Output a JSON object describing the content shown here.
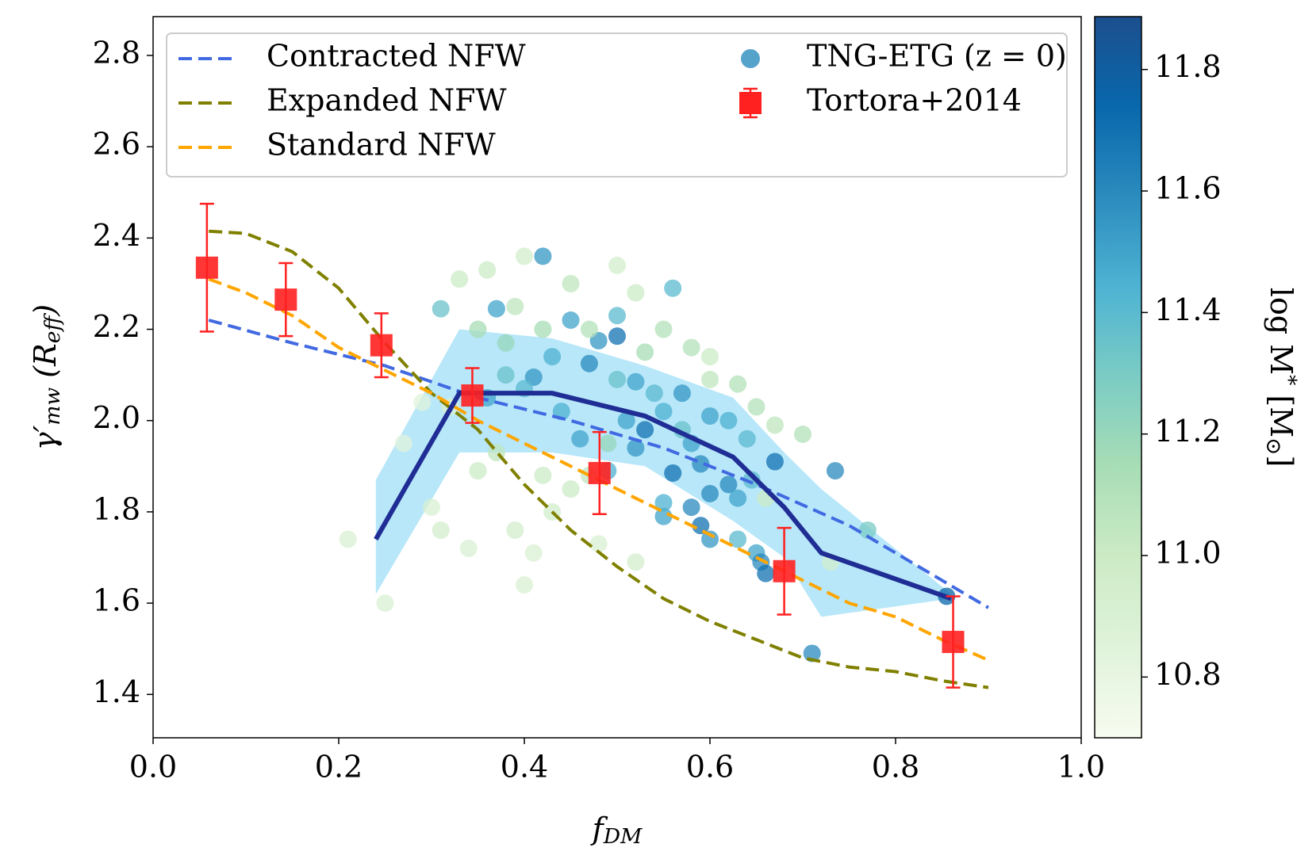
{
  "chart_data": {
    "type": "scatter",
    "xlabel": [
      {
        "text": "f"
      },
      {
        "text": "DM",
        "script": "sub"
      }
    ],
    "ylabel": [
      {
        "text": "γ′"
      },
      {
        "text": "mw",
        "script": "sub"
      },
      {
        "text": " (R"
      },
      {
        "text": "eff",
        "script": "sub"
      },
      {
        "text": ")"
      }
    ],
    "xlim": [
      0,
      1
    ],
    "xticks": [
      {
        "value": 0,
        "label": "0.0"
      },
      0.2,
      0.4,
      0.6,
      0.8,
      {
        "value": 1,
        "label": "1.0"
      }
    ],
    "ylim": [
      1.305,
      2.885
    ],
    "yticks": [
      1.4,
      1.6,
      1.8,
      {
        "value": 2,
        "label": "2.0"
      },
      2.2,
      2.4,
      2.6,
      2.8
    ],
    "lines": [
      {
        "name": "Contracted NFW",
        "color": "#4169e1",
        "dash": true,
        "x": [
          0.06,
          0.15,
          0.25,
          0.35,
          0.45,
          0.55,
          0.65,
          0.75,
          0.85,
          0.9
        ],
        "values": [
          2.22,
          2.17,
          2.12,
          2.05,
          2.0,
          1.94,
          1.86,
          1.77,
          1.65,
          1.59
        ]
      },
      {
        "name": "Expanded NFW",
        "color": "#808000",
        "dash": true,
        "x": [
          0.06,
          0.1,
          0.15,
          0.2,
          0.25,
          0.3,
          0.35,
          0.4,
          0.45,
          0.5,
          0.55,
          0.6,
          0.65,
          0.7,
          0.75,
          0.8,
          0.85,
          0.9
        ],
        "values": [
          2.415,
          2.41,
          2.37,
          2.29,
          2.17,
          2.06,
          1.98,
          1.86,
          1.76,
          1.68,
          1.61,
          1.56,
          1.52,
          1.48,
          1.46,
          1.45,
          1.43,
          1.415
        ]
      },
      {
        "name": "Standard NFW",
        "color": "#ffa500",
        "dash": true,
        "x": [
          0.06,
          0.1,
          0.15,
          0.2,
          0.25,
          0.3,
          0.35,
          0.4,
          0.45,
          0.5,
          0.55,
          0.6,
          0.65,
          0.7,
          0.75,
          0.8,
          0.85,
          0.9
        ],
        "values": [
          2.31,
          2.28,
          2.23,
          2.16,
          2.11,
          2.06,
          2.0,
          1.95,
          1.9,
          1.85,
          1.8,
          1.75,
          1.7,
          1.65,
          1.6,
          1.57,
          1.52,
          1.475
        ]
      }
    ],
    "median": {
      "color": "#1f2d94",
      "band_color": "#87d7f5",
      "x": [
        0.24,
        0.33,
        0.43,
        0.53,
        0.625,
        0.68,
        0.72,
        0.86
      ],
      "values": [
        1.74,
        2.06,
        2.06,
        2.01,
        1.92,
        1.81,
        1.71,
        1.61
      ],
      "upper": [
        1.87,
        2.2,
        2.18,
        2.12,
        2.05,
        1.93,
        1.85,
        1.62
      ],
      "lower": [
        1.62,
        1.93,
        1.93,
        1.9,
        1.78,
        1.7,
        1.57,
        1.61
      ]
    },
    "scatter": {
      "name": "TNG-ETG (z = 0)",
      "legend_color": "#2b8cbe",
      "x": [
        0.42,
        0.37,
        0.31,
        0.5,
        0.45,
        0.56,
        0.47,
        0.41,
        0.48,
        0.5,
        0.52,
        0.57,
        0.6,
        0.53,
        0.58,
        0.59,
        0.56,
        0.6,
        0.62,
        0.63,
        0.58,
        0.59,
        0.6,
        0.55,
        0.55,
        0.63,
        0.65,
        0.655,
        0.66,
        0.67,
        0.735,
        0.71,
        0.855,
        0.77,
        0.645,
        0.64,
        0.62,
        0.55,
        0.52,
        0.49,
        0.46,
        0.44,
        0.4,
        0.36,
        0.38,
        0.43,
        0.5,
        0.54,
        0.57,
        0.51,
        0.4,
        0.45,
        0.5,
        0.36,
        0.33,
        0.39,
        0.52,
        0.58,
        0.6,
        0.6,
        0.65,
        0.67,
        0.66,
        0.21,
        0.25,
        0.3,
        0.31,
        0.34,
        0.39,
        0.4,
        0.41,
        0.43,
        0.45,
        0.48,
        0.52,
        0.32,
        0.29,
        0.35,
        0.37,
        0.42,
        0.47,
        0.73,
        0.27,
        0.55,
        0.53,
        0.47,
        0.42,
        0.38,
        0.35,
        0.63,
        0.7,
        0.49
      ],
      "values": [
        2.36,
        2.245,
        2.245,
        2.185,
        2.22,
        2.29,
        2.125,
        2.095,
        2.175,
        2.23,
        2.085,
        2.06,
        2.01,
        1.98,
        1.95,
        1.905,
        1.885,
        1.84,
        1.86,
        1.83,
        1.81,
        1.77,
        1.74,
        1.79,
        1.82,
        1.74,
        1.71,
        1.69,
        1.665,
        1.91,
        1.89,
        1.49,
        1.615,
        1.76,
        1.87,
        1.96,
        2.0,
        2.02,
        1.94,
        1.89,
        1.96,
        2.02,
        2.07,
        2.05,
        2.1,
        2.14,
        2.09,
        2.06,
        1.98,
        2.0,
        2.36,
        2.3,
        2.34,
        2.33,
        2.31,
        2.25,
        2.28,
        2.16,
        2.14,
        2.09,
        2.03,
        1.99,
        1.83,
        1.74,
        1.6,
        1.81,
        1.76,
        1.72,
        1.76,
        1.64,
        1.71,
        1.8,
        1.85,
        1.73,
        1.69,
        2.03,
        2.04,
        1.89,
        1.93,
        1.88,
        1.88,
        1.69,
        1.95,
        2.2,
        2.15,
        2.2,
        2.2,
        2.17,
        2.2,
        2.08,
        1.97,
        1.95
      ],
      "mass": [
        11.55,
        11.5,
        11.35,
        11.7,
        11.5,
        11.4,
        11.6,
        11.55,
        11.55,
        11.4,
        11.5,
        11.55,
        11.5,
        11.7,
        11.5,
        11.6,
        11.7,
        11.6,
        11.6,
        11.5,
        11.6,
        11.7,
        11.55,
        11.5,
        11.45,
        11.4,
        11.5,
        11.6,
        11.7,
        11.7,
        11.6,
        11.6,
        11.75,
        11.3,
        11.4,
        11.4,
        11.45,
        11.45,
        11.55,
        11.45,
        11.5,
        11.45,
        11.4,
        11.5,
        11.35,
        11.45,
        11.35,
        11.4,
        11.35,
        11.5,
        10.95,
        11.05,
        10.95,
        11.0,
        11.0,
        11.05,
        11.0,
        11.1,
        11.0,
        11.05,
        11.1,
        11.05,
        11.0,
        10.9,
        10.9,
        10.9,
        10.95,
        10.9,
        10.95,
        10.9,
        10.9,
        10.95,
        11.0,
        10.9,
        10.95,
        10.9,
        10.85,
        11.0,
        11.05,
        11.0,
        11.05,
        10.95,
        10.85,
        11.1,
        11.15,
        11.1,
        11.15,
        11.2,
        11.15,
        11.1,
        11.1,
        11.2
      ]
    },
    "errorbars": {
      "name": "Tortora+2014",
      "color": "#ff2020",
      "x": [
        0.058,
        0.143,
        0.246,
        0.344,
        0.481,
        0.68,
        0.862
      ],
      "values": [
        2.335,
        2.265,
        2.165,
        2.055,
        1.885,
        1.67,
        1.515
      ],
      "errors": [
        0.14,
        0.08,
        0.07,
        0.06,
        0.09,
        0.095,
        0.1
      ]
    },
    "colorbar": {
      "label": [
        {
          "text": "log M"
        },
        {
          "text": "*",
          "script": "sup"
        },
        {
          "text": " [M"
        },
        {
          "text": "⊙",
          "script": "sub"
        },
        {
          "text": "]"
        }
      ],
      "lim": [
        10.7,
        11.887
      ],
      "ticks": [
        10.8,
        {
          "value": 11,
          "label": "11.0"
        },
        11.2,
        11.4,
        11.6,
        11.8
      ],
      "colormap": [
        "#f7fcf0",
        "#e0f3db",
        "#ccebc5",
        "#a8ddb5",
        "#7bccc4",
        "#4eb3d3",
        "#2b8cbe",
        "#0868ac",
        "#1c4f8e"
      ]
    },
    "legend": "upper"
  }
}
